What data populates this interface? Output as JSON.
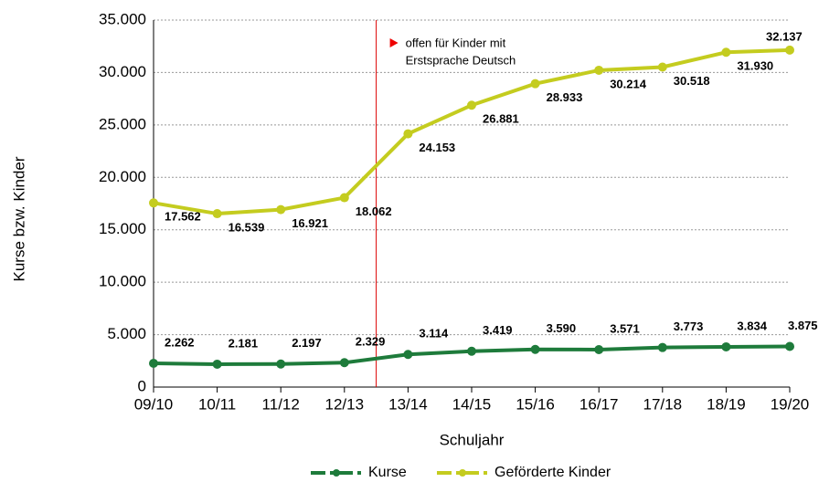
{
  "chart_data": {
    "type": "line",
    "y_label": "Kurse bzw. Kinder",
    "x_label": "Schuljahr",
    "annotation": [
      "offen für Kinder mit",
      "Erstsprache Deutsch"
    ],
    "categories": [
      "09/10",
      "10/11",
      "11/12",
      "12/13",
      "13/14",
      "14/15",
      "15/16",
      "16/17",
      "17/18",
      "18/19",
      "19/20"
    ],
    "series": [
      {
        "name": "Kurse",
        "color": "#1e7b3b",
        "values": [
          2262,
          2181,
          2197,
          2329,
          3114,
          3419,
          3590,
          3571,
          3773,
          3834,
          3875
        ],
        "value_labels": [
          "2.262",
          "2.181",
          "2.197",
          "2.329",
          "3.114",
          "3.419",
          "3.590",
          "3.571",
          "3.773",
          "3.834",
          "3.875"
        ]
      },
      {
        "name": "Geförderte Kinder",
        "color": "#c4cc1f",
        "values": [
          17562,
          16539,
          16921,
          18062,
          24153,
          26881,
          28933,
          30214,
          30518,
          31930,
          32137
        ],
        "value_labels": [
          "17.562",
          "16.539",
          "16.921",
          "18.062",
          "24.153",
          "26.881",
          "28.933",
          "30.214",
          "30.518",
          "31.930",
          "32.137"
        ]
      }
    ],
    "ylim": [
      0,
      35000
    ],
    "yticks": [
      0,
      {
        "value": 5000,
        "label": "5.000"
      },
      {
        "value": 10000,
        "label": "10.000"
      },
      {
        "value": 15000,
        "label": "15.000"
      },
      {
        "value": 20000,
        "label": "20.000"
      },
      {
        "value": 25000,
        "label": "25.000"
      },
      {
        "value": 30000,
        "label": "30.000"
      },
      {
        "value": 35000,
        "label": "35.000"
      }
    ],
    "grid": true,
    "legend": "bottom"
  }
}
